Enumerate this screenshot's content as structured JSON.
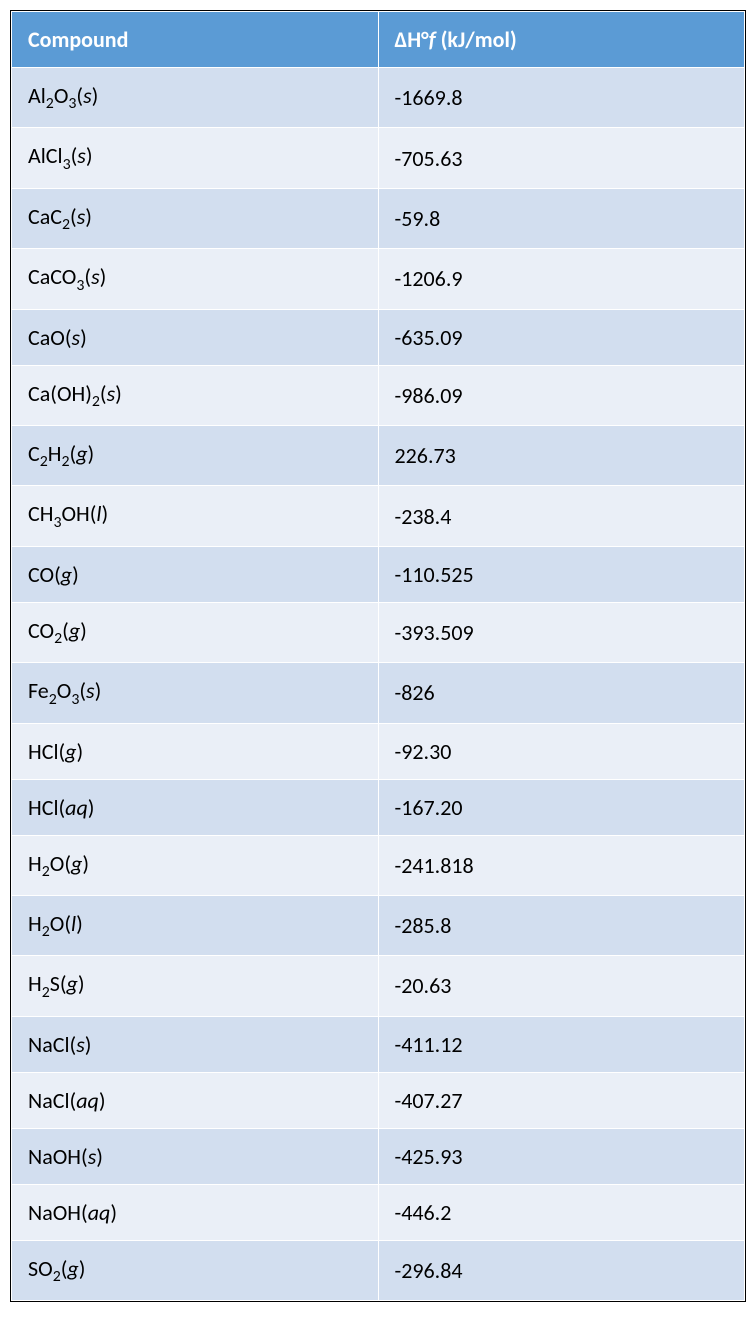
{
  "table": {
    "header_bg": "#5b9bd5",
    "header_text_color": "#ffffff",
    "row_odd_bg": "#d2deef",
    "row_even_bg": "#eaeff7",
    "border_color": "#ffffff",
    "outer_border_color": "#000000",
    "font_size": 22,
    "columns": [
      {
        "label": "Compound"
      },
      {
        "label_prefix": "ΔH°",
        "label_italic": "f",
        "label_suffix": " (kJ/mol)"
      }
    ],
    "rows": [
      {
        "compound_html": "Al<sub>2</sub>O<sub>3</sub>(<i>s</i>)",
        "value": "-1669.8"
      },
      {
        "compound_html": "AlCl<sub>3</sub>(<i>s</i>)",
        "value": "-705.63"
      },
      {
        "compound_html": "CaC<sub>2</sub>(<i>s</i>)",
        "value": "-59.8"
      },
      {
        "compound_html": "CaCO<sub>3</sub>(<i>s</i>)",
        "value": "-1206.9"
      },
      {
        "compound_html": "CaO(<i>s</i>)",
        "value": "-635.09"
      },
      {
        "compound_html": "Ca(OH)<sub>2</sub>(<i>s</i>)",
        "value": "-986.09"
      },
      {
        "compound_html": "C<sub>2</sub>H<sub>2</sub>(<i>g</i>)",
        "value": "226.73"
      },
      {
        "compound_html": "CH<sub>3</sub>OH(<i>l</i>)",
        "value": "-238.4"
      },
      {
        "compound_html": "CO(<i>g</i>)",
        "value": "-110.525"
      },
      {
        "compound_html": "CO<sub>2</sub>(<i>g</i>)",
        "value": "-393.509"
      },
      {
        "compound_html": "Fe<sub>2</sub>O<sub>3</sub>(<i>s</i>)",
        "value": "-826"
      },
      {
        "compound_html": "HCl(<i>g</i>)",
        "value": "-92.30"
      },
      {
        "compound_html": "HCl(<i>aq</i>)",
        "value": "-167.20"
      },
      {
        "compound_html": "H<sub>2</sub>O(<i>g</i>)",
        "value": "-241.818"
      },
      {
        "compound_html": "H<sub>2</sub>O(<i>l</i>)",
        "value": "-285.8"
      },
      {
        "compound_html": "H<sub>2</sub>S(<i>g</i>)",
        "value": "-20.63"
      },
      {
        "compound_html": "NaCl(<i>s</i>)",
        "value": "-411.12"
      },
      {
        "compound_html": "NaCl(<i>aq</i>)",
        "value": "-407.27"
      },
      {
        "compound_html": "NaOH(<i>s</i>)",
        "value": "-425.93"
      },
      {
        "compound_html": "NaOH(<i>aq</i>)",
        "value": "-446.2"
      },
      {
        "compound_html": "SO<sub>2</sub>(<i>g</i>)",
        "value": "-296.84"
      }
    ]
  }
}
